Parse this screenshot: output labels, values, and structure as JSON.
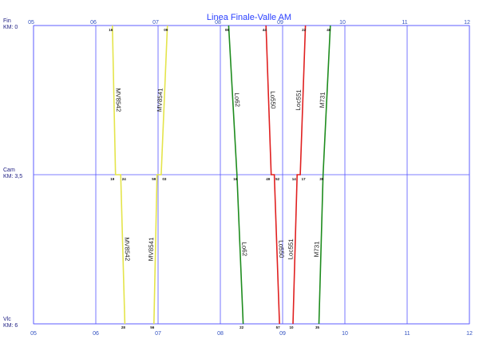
{
  "chart_data": {
    "type": "timetable",
    "title": "Linea Finale-Valle AM",
    "stations": [
      {
        "name": "Fin",
        "km": "KM: 0"
      },
      {
        "name": "Cam",
        "km": "KM: 3,5"
      },
      {
        "name": "Vlc",
        "km": "KM: 6"
      }
    ],
    "xlim": [
      "05:00",
      "12:00"
    ],
    "xticks": [
      {
        "value": "05:00",
        "label": "05"
      },
      {
        "value": "06:00",
        "label": "06"
      },
      {
        "value": "07:00",
        "label": "07"
      },
      {
        "value": "08:00",
        "label": "08"
      },
      {
        "value": "09:00",
        "label": "09"
      },
      {
        "value": "10:00",
        "label": "10"
      },
      {
        "value": "11:00",
        "label": "11"
      },
      {
        "value": "12:00",
        "label": "12"
      }
    ],
    "grid": true,
    "series": [
      {
        "name": "MV8542",
        "color": "#e4e44a",
        "x": [
          "06:16",
          "06:19",
          "06:24",
          "06:28"
        ],
        "stops": [
          "Fin",
          "Cam",
          "Cam",
          "Vlc"
        ],
        "value_labels": [
          "16",
          "19",
          "24",
          "28"
        ]
      },
      {
        "name": "MV8541",
        "color": "#e4e44a",
        "x": [
          "06:56",
          "06:59",
          "07:03",
          "07:09"
        ],
        "stops": [
          "Vlc",
          "Cam",
          "Cam",
          "Fin"
        ],
        "value_labels": [
          "56",
          "59",
          "03",
          "09"
        ]
      },
      {
        "name": "Lo62",
        "color": "#1e8c1e",
        "x": [
          "08:08",
          "08:16",
          "08:22"
        ],
        "stops": [
          "Fin",
          "Cam",
          "Vlc"
        ],
        "value_labels": [
          "08",
          "16",
          "22"
        ]
      },
      {
        "name": "Lo550",
        "color": "#e02020",
        "x": [
          "08:44",
          "08:49",
          "08:52",
          "08:57"
        ],
        "stops": [
          "Fin",
          "Cam",
          "Cam",
          "Vlc"
        ],
        "value_labels": [
          "44",
          "49",
          "52",
          "57"
        ]
      },
      {
        "name": "Loc551",
        "color": "#e02020",
        "x": [
          "09:10",
          "09:14",
          "09:17",
          "09:22"
        ],
        "stops": [
          "Vlc",
          "Cam",
          "Cam",
          "Fin"
        ],
        "value_labels": [
          "10",
          "14",
          "17",
          "22"
        ]
      },
      {
        "name": "M731",
        "color": "#1e8c1e",
        "x": [
          "09:35",
          "09:39",
          "09:46"
        ],
        "stops": [
          "Vlc",
          "Cam",
          "Fin"
        ],
        "value_labels": [
          "35",
          "39",
          "46"
        ]
      }
    ]
  }
}
